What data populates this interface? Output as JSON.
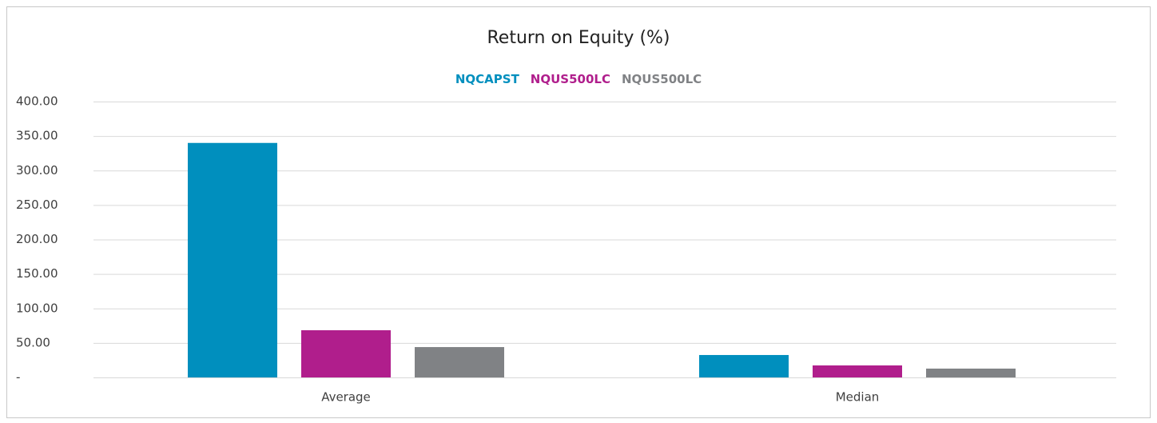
{
  "chart_data": {
    "type": "bar",
    "title": "Return on Equity (%)",
    "categories": [
      "Average",
      "Median"
    ],
    "series": [
      {
        "name": "NQCAPST",
        "color": "#008fbe",
        "values": [
          340,
          32.5
        ]
      },
      {
        "name": "NQUS500LC",
        "color": "#b01e8c",
        "values": [
          68.4,
          17.4
        ]
      },
      {
        "name": "NQUS500LC",
        "color": "#808285",
        "values": [
          44,
          12.8
        ]
      }
    ],
    "ylim": [
      0,
      400
    ],
    "yticks": [
      {
        "value": 0,
        "label": "-"
      },
      {
        "value": 50,
        "label": "50.00"
      },
      {
        "value": 100,
        "label": "100.00"
      },
      {
        "value": 150,
        "label": "150.00"
      },
      {
        "value": 200,
        "label": "200.00"
      },
      {
        "value": 250,
        "label": "250.00"
      },
      {
        "value": 300,
        "label": "300.00"
      },
      {
        "value": 350,
        "label": "350.00"
      },
      {
        "value": 400,
        "label": "400.00"
      }
    ],
    "grid": true
  }
}
